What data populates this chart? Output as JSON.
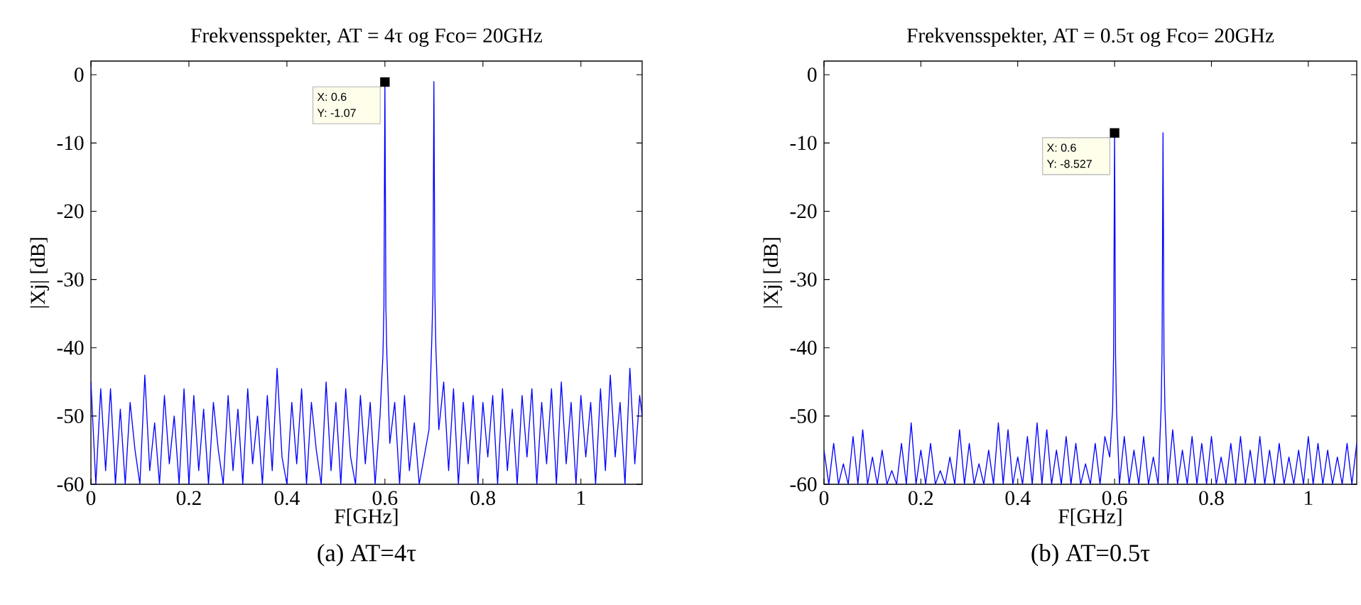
{
  "chart_data": [
    {
      "type": "line",
      "title": "Frekvensspekter, AT = 4τ og Fco= 20GHz",
      "xlabel": "F[GHz]",
      "ylabel": "|Xj| [dB]",
      "xlim": [
        0,
        1.125
      ],
      "ylim": [
        -60,
        2
      ],
      "xticks": [
        0,
        0.2,
        0.4,
        0.6,
        0.8,
        1
      ],
      "yticks": [
        -60,
        -50,
        -40,
        -30,
        -20,
        -10,
        0
      ],
      "annotations": [
        "X: 0.6",
        "Y: -1.07",
        "(a)  AT=4τ"
      ],
      "series": [
        {
          "color": "#0000ff",
          "x": [
            0,
            0.01,
            0.02,
            0.03,
            0.04,
            0.05,
            0.06,
            0.07,
            0.08,
            0.09,
            0.1,
            0.11,
            0.12,
            0.13,
            0.14,
            0.15,
            0.16,
            0.17,
            0.18,
            0.19,
            0.2,
            0.21,
            0.22,
            0.23,
            0.24,
            0.25,
            0.26,
            0.27,
            0.28,
            0.29,
            0.3,
            0.31,
            0.32,
            0.33,
            0.34,
            0.35,
            0.36,
            0.37,
            0.38,
            0.39,
            0.4,
            0.41,
            0.42,
            0.43,
            0.44,
            0.45,
            0.46,
            0.47,
            0.48,
            0.49,
            0.5,
            0.51,
            0.52,
            0.53,
            0.54,
            0.55,
            0.56,
            0.57,
            0.58,
            0.59,
            0.596,
            0.598,
            0.6,
            0.602,
            0.604,
            0.61,
            0.62,
            0.63,
            0.64,
            0.65,
            0.66,
            0.67,
            0.68,
            0.69,
            0.696,
            0.698,
            0.7,
            0.702,
            0.704,
            0.71,
            0.72,
            0.73,
            0.74,
            0.75,
            0.76,
            0.77,
            0.78,
            0.79,
            0.8,
            0.81,
            0.82,
            0.83,
            0.84,
            0.85,
            0.86,
            0.87,
            0.88,
            0.89,
            0.9,
            0.91,
            0.92,
            0.93,
            0.94,
            0.95,
            0.96,
            0.97,
            0.98,
            0.99,
            1,
            1.01,
            1.02,
            1.03,
            1.04,
            1.05,
            1.06,
            1.07,
            1.08,
            1.09,
            1.1,
            1.11,
            1.12,
            1.125
          ],
          "values": [
            -45,
            -60,
            -46,
            -58,
            -46,
            -60,
            -49,
            -60,
            -48,
            -55,
            -60,
            -44,
            -58,
            -51,
            -60,
            -47,
            -57,
            -50,
            -60,
            -46,
            -60,
            -47,
            -58,
            -49,
            -60,
            -48,
            -55,
            -60,
            -47,
            -58,
            -49,
            -60,
            -46,
            -57,
            -50,
            -60,
            -47,
            -58,
            -43,
            -56,
            -60,
            -48,
            -57,
            -46,
            -60,
            -48,
            -55,
            -60,
            -45,
            -58,
            -48,
            -60,
            -46,
            -56,
            -60,
            -47,
            -57,
            -48,
            -60,
            -50,
            -41,
            -34,
            -1.07,
            -34,
            -41,
            -54,
            -48,
            -60,
            -47,
            -58,
            -51,
            -60,
            -56,
            -52,
            -38,
            -32,
            -1,
            -32,
            -40,
            -52,
            -45,
            -58,
            -46,
            -60,
            -48,
            -57,
            -47,
            -60,
            -48,
            -56,
            -47,
            -60,
            -46,
            -58,
            -49,
            -60,
            -47,
            -56,
            -46,
            -60,
            -48,
            -57,
            -46,
            -60,
            -45,
            -57,
            -48,
            -60,
            -47,
            -56,
            -48,
            -60,
            -46,
            -58,
            -44,
            -56,
            -48,
            -60,
            -43,
            -57,
            -47,
            -50
          ]
        }
      ]
    },
    {
      "type": "line",
      "title": "Frekvensspekter, AT = 0.5τ og Fco= 20GHz",
      "xlabel": "F[GHz]",
      "ylabel": "|Xj| [dB]",
      "xlim": [
        0,
        1.1
      ],
      "ylim": [
        -60,
        2
      ],
      "xticks": [
        0,
        0.2,
        0.4,
        0.6,
        0.8,
        1
      ],
      "yticks": [
        -60,
        -50,
        -40,
        -30,
        -20,
        -10,
        0
      ],
      "annotations": [
        "X: 0.6",
        "Y: -8.527",
        "(b)  AT=0.5τ"
      ],
      "series": [
        {
          "color": "#0000ff",
          "x": [
            0,
            0.01,
            0.02,
            0.03,
            0.04,
            0.05,
            0.06,
            0.07,
            0.08,
            0.09,
            0.1,
            0.11,
            0.12,
            0.13,
            0.14,
            0.15,
            0.16,
            0.17,
            0.18,
            0.19,
            0.2,
            0.21,
            0.22,
            0.23,
            0.24,
            0.25,
            0.26,
            0.27,
            0.28,
            0.29,
            0.3,
            0.31,
            0.32,
            0.33,
            0.34,
            0.35,
            0.36,
            0.37,
            0.38,
            0.39,
            0.4,
            0.41,
            0.42,
            0.43,
            0.44,
            0.45,
            0.46,
            0.47,
            0.48,
            0.49,
            0.5,
            0.51,
            0.52,
            0.53,
            0.54,
            0.55,
            0.56,
            0.57,
            0.58,
            0.59,
            0.596,
            0.598,
            0.6,
            0.602,
            0.604,
            0.61,
            0.62,
            0.63,
            0.64,
            0.65,
            0.66,
            0.67,
            0.68,
            0.69,
            0.696,
            0.698,
            0.7,
            0.702,
            0.704,
            0.71,
            0.72,
            0.73,
            0.74,
            0.75,
            0.76,
            0.77,
            0.78,
            0.79,
            0.8,
            0.81,
            0.82,
            0.83,
            0.84,
            0.85,
            0.86,
            0.87,
            0.88,
            0.89,
            0.9,
            0.91,
            0.92,
            0.93,
            0.94,
            0.95,
            0.96,
            0.97,
            0.98,
            0.99,
            1,
            1.01,
            1.02,
            1.03,
            1.04,
            1.05,
            1.06,
            1.07,
            1.08,
            1.09,
            1.1
          ],
          "values": [
            -55,
            -60,
            -54,
            -60,
            -57,
            -60,
            -53,
            -60,
            -52,
            -60,
            -56,
            -60,
            -55,
            -60,
            -58,
            -60,
            -54,
            -60,
            -51,
            -60,
            -55,
            -60,
            -54,
            -60,
            -58,
            -60,
            -56,
            -60,
            -52,
            -60,
            -54,
            -60,
            -57,
            -60,
            -55,
            -60,
            -51,
            -60,
            -52,
            -60,
            -56,
            -60,
            -53,
            -60,
            -51,
            -60,
            -52,
            -60,
            -55,
            -60,
            -53,
            -60,
            -54,
            -60,
            -57,
            -60,
            -54,
            -60,
            -53,
            -56,
            -49,
            -41,
            -8.527,
            -41,
            -49,
            -60,
            -53,
            -60,
            -55,
            -60,
            -53,
            -60,
            -56,
            -60,
            -49,
            -41,
            -8.5,
            -41,
            -49,
            -60,
            -52,
            -60,
            -55,
            -60,
            -53,
            -60,
            -54,
            -60,
            -53,
            -60,
            -56,
            -60,
            -54,
            -60,
            -53,
            -60,
            -55,
            -60,
            -53,
            -60,
            -55,
            -60,
            -54,
            -60,
            -56,
            -60,
            -55,
            -60,
            -53,
            -60,
            -54,
            -60,
            -55,
            -60,
            -56,
            -60,
            -54,
            -60,
            -54
          ]
        }
      ]
    }
  ]
}
